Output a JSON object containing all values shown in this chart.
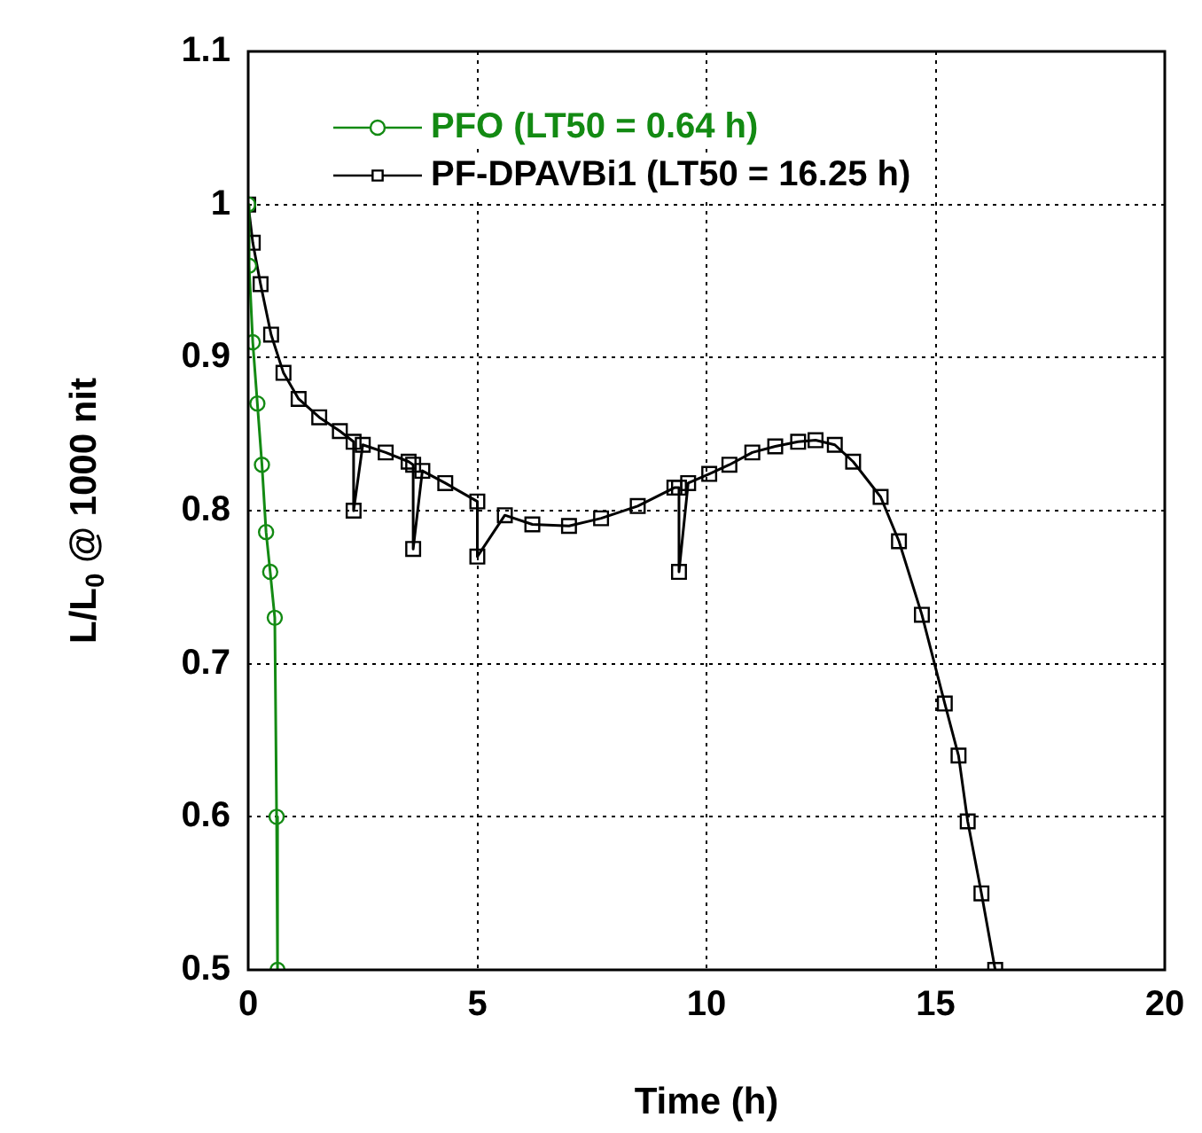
{
  "chart_data": {
    "type": "line",
    "xlabel": "Time (h)",
    "ylabel": "L/L$_{0}$ @ 1000 nit",
    "xlim": [
      0,
      20
    ],
    "xticks": [
      0,
      5,
      10,
      15,
      20
    ],
    "ylim": [
      0.5,
      1.1
    ],
    "yticks": [
      0.5,
      0.6,
      0.7,
      0.8,
      0.9,
      1,
      1.1
    ],
    "grid": true,
    "legend": "top left",
    "line_style": "solid",
    "series": [
      {
        "name": "PFO (LT50 = 0.64 h)",
        "color": "#138a13",
        "marker": "circle",
        "x": [
          0,
          0.02,
          0.1,
          0.2,
          0.3,
          0.39,
          0.48,
          0.58,
          0.62,
          0.64
        ],
        "values": [
          1,
          0.96,
          0.91,
          0.87,
          0.83,
          0.786,
          0.76,
          0.73,
          0.6,
          0.5
        ]
      },
      {
        "name": "PF-DPAVBi1 (LT50 = 16.25 h)",
        "color": "#000000",
        "marker": "square",
        "x": [
          0,
          0.1,
          0.27,
          0.5,
          0.77,
          1.1,
          1.55,
          2.0,
          2.3,
          2.3,
          2.5,
          3.0,
          3.5,
          3.6,
          3.6,
          3.8,
          4.3,
          5.0,
          5.0,
          5.6,
          6.2,
          7.0,
          7.7,
          8.5,
          9.3,
          9.4,
          9.4,
          9.6,
          10.06,
          10.5,
          11.0,
          11.5,
          12.0,
          12.38,
          12.8,
          13.2,
          13.8,
          14.2,
          14.7,
          15.2,
          15.5,
          15.7,
          16.0,
          16.3
        ],
        "values": [
          1,
          0.975,
          0.948,
          0.915,
          0.89,
          0.873,
          0.861,
          0.852,
          0.845,
          0.8,
          0.843,
          0.838,
          0.832,
          0.83,
          0.775,
          0.826,
          0.818,
          0.806,
          0.77,
          0.797,
          0.791,
          0.79,
          0.795,
          0.803,
          0.815,
          0.815,
          0.76,
          0.818,
          0.824,
          0.83,
          0.838,
          0.842,
          0.845,
          0.846,
          0.843,
          0.832,
          0.809,
          0.78,
          0.732,
          0.674,
          0.64,
          0.597,
          0.55,
          0.5
        ]
      }
    ]
  }
}
